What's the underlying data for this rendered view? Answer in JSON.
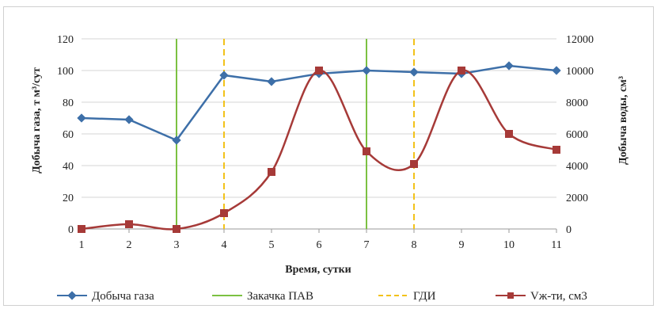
{
  "chart_data": {
    "type": "line",
    "xlabel": "Время, сутки",
    "ylabel": "Добыча газа, т м³/сут",
    "y2label": "Добыча воды, см³",
    "x": [
      1,
      2,
      3,
      4,
      5,
      6,
      7,
      8,
      9,
      10,
      11
    ],
    "xlim": [
      1,
      11
    ],
    "ylim": [
      0,
      120
    ],
    "y2lim": [
      0,
      12000
    ],
    "yticks": [
      "0",
      "20",
      "40",
      "60",
      "80",
      "100",
      "120"
    ],
    "y2ticks": [
      "0",
      "2000",
      "4000",
      "6000",
      "8000",
      "10000",
      "12000"
    ],
    "xticks": [
      "1",
      "2",
      "3",
      "4",
      "5",
      "6",
      "7",
      "8",
      "9",
      "10",
      "11"
    ],
    "grid": true,
    "legend_position": "bottom",
    "series": [
      {
        "name": "Добыча газа",
        "axis": "left",
        "color": "#3d6fa8",
        "marker": "diamond",
        "values": [
          70,
          69,
          56,
          97,
          93,
          98,
          100,
          99,
          98,
          103,
          100
        ]
      },
      {
        "name": "Vж-ти, см3",
        "axis": "right",
        "color": "#a63a38",
        "marker": "square",
        "smooth": true,
        "values": [
          0,
          300,
          0,
          1000,
          3600,
          10000,
          4900,
          4100,
          10000,
          6000,
          5000
        ]
      }
    ],
    "vlines": [
      {
        "name": "Закачка ПАВ",
        "color": "#7cc142",
        "style": "solid",
        "x": [
          3,
          7
        ]
      },
      {
        "name": "ГДИ",
        "color": "#f2c21a",
        "style": "dashed",
        "x": [
          4,
          8
        ]
      }
    ]
  }
}
